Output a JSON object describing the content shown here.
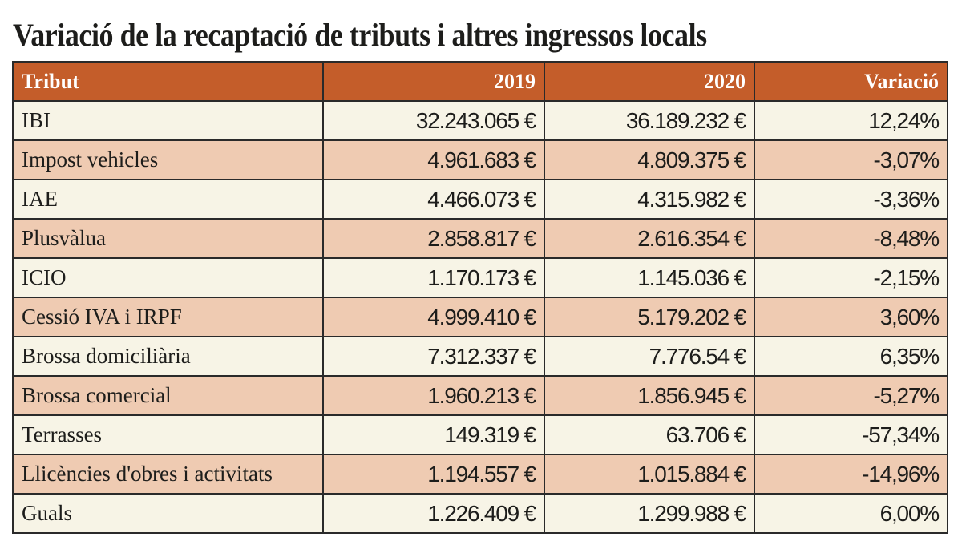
{
  "title": "Variació de la recaptació de tributs i altres ingressos locals",
  "colors": {
    "header": "#c45d2a",
    "row_light": "#f7f4e6",
    "row_alt": "#efcbb2"
  },
  "chart_data": {
    "type": "table",
    "title": "Variació de la recaptació de tributs i altres ingressos locals",
    "columns": [
      "Tribut",
      "2019",
      "2020",
      "Variació"
    ],
    "rows": [
      [
        "IBI",
        "32.243.065 €",
        "36.189.232 €",
        "12,24%"
      ],
      [
        "Impost vehicles",
        "4.961.683 €",
        "4.809.375 €",
        "-3,07%"
      ],
      [
        "IAE",
        "4.466.073 €",
        "4.315.982 €",
        "-3,36%"
      ],
      [
        "Plusvàlua",
        "2.858.817 €",
        "2.616.354 €",
        "-8,48%"
      ],
      [
        "ICIO",
        "1.170.173 €",
        "1.145.036 €",
        "-2,15%"
      ],
      [
        "Cessió IVA i IRPF",
        "4.999.410 €",
        "5.179.202 €",
        "3,60%"
      ],
      [
        "Brossa domiciliària",
        "7.312.337 €",
        "7.776.54 €",
        "6,35%"
      ],
      [
        "Brossa comercial",
        "1.960.213 €",
        "1.856.945 €",
        "-5,27%"
      ],
      [
        "Terrasses",
        "149.319 €",
        "63.706 €",
        "-57,34%"
      ],
      [
        "Llicències d'obres i activitats",
        "1.194.557 €",
        "1.015.884 €",
        "-14,96%"
      ],
      [
        "Guals",
        "1.226.409 €",
        "1.299.988 €",
        "6,00%"
      ]
    ]
  }
}
